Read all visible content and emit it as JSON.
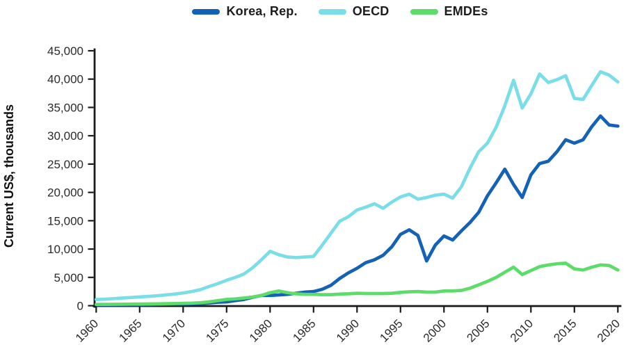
{
  "legend": {
    "items": [
      {
        "label": "Korea, Rep.",
        "color": "#1362b5"
      },
      {
        "label": "OECD",
        "color": "#7adee8"
      },
      {
        "label": "EMDEs",
        "color": "#5ddc69"
      }
    ]
  },
  "chart_data": {
    "type": "line",
    "title": "",
    "xlabel": "",
    "ylabel": "Current US$, thousands",
    "grid": false,
    "legend_position": "top",
    "xlim": [
      1960,
      2020
    ],
    "ylim": [
      0,
      45000
    ],
    "x_start": 1960,
    "x_tick_step": 5,
    "y_tick_step": 5000,
    "x_tick_labels": [
      "1960",
      "1965",
      "1970",
      "1975",
      "1980",
      "1985",
      "1990",
      "1995",
      "2000",
      "2005",
      "2010",
      "2015",
      "2020"
    ],
    "y_tick_labels": [
      "0",
      "5,000",
      "10,000",
      "15,000",
      "20,000",
      "25,000",
      "30,000",
      "35,000",
      "40,000",
      "45,000"
    ],
    "x": [
      1960,
      1961,
      1962,
      1963,
      1964,
      1965,
      1966,
      1967,
      1968,
      1969,
      1970,
      1971,
      1972,
      1973,
      1974,
      1975,
      1976,
      1977,
      1978,
      1979,
      1980,
      1981,
      1982,
      1983,
      1984,
      1985,
      1986,
      1987,
      1988,
      1989,
      1990,
      1991,
      1992,
      1993,
      1994,
      1995,
      1996,
      1997,
      1998,
      1999,
      2000,
      2001,
      2002,
      2003,
      2004,
      2005,
      2006,
      2007,
      2008,
      2009,
      2010,
      2011,
      2012,
      2013,
      2014,
      2015,
      2016,
      2017,
      2018,
      2019,
      2020
    ],
    "series": [
      {
        "name": "Korea, Rep.",
        "color": "#1362b5",
        "values": [
          160,
          150,
          150,
          160,
          160,
          160,
          180,
          210,
          240,
          280,
          320,
          350,
          380,
          480,
          620,
          680,
          900,
          1100,
          1500,
          1800,
          1800,
          1900,
          2000,
          2200,
          2400,
          2500,
          2900,
          3600,
          4800,
          5800,
          6600,
          7600,
          8100,
          8900,
          10400,
          12600,
          13400,
          12400,
          7900,
          10700,
          12300,
          11600,
          13200,
          14700,
          16500,
          19400,
          21700,
          24100,
          21400,
          19100,
          23100,
          25100,
          25500,
          27200,
          29300,
          28700,
          29300,
          31600,
          33500,
          31900,
          31700
        ]
      },
      {
        "name": "OECD",
        "color": "#7adee8",
        "values": [
          1100,
          1160,
          1250,
          1350,
          1450,
          1550,
          1650,
          1750,
          1900,
          2050,
          2250,
          2500,
          2850,
          3400,
          3900,
          4500,
          5000,
          5600,
          6700,
          8100,
          9600,
          9000,
          8600,
          8500,
          8600,
          8700,
          10700,
          12800,
          14900,
          15700,
          16900,
          17400,
          18000,
          17200,
          18300,
          19200,
          19700,
          18800,
          19100,
          19500,
          19700,
          19000,
          21000,
          24300,
          27200,
          28700,
          31500,
          35300,
          39800,
          34900,
          37400,
          40900,
          39400,
          39900,
          40600,
          36600,
          36400,
          38900,
          41300,
          40700,
          39500
        ]
      },
      {
        "name": "EMDEs",
        "color": "#5ddc69",
        "values": [
          230,
          230,
          240,
          260,
          280,
          300,
          310,
          330,
          350,
          380,
          420,
          460,
          530,
          680,
          900,
          1100,
          1200,
          1350,
          1550,
          1800,
          2300,
          2600,
          2300,
          2100,
          2000,
          2000,
          1950,
          1950,
          2050,
          2100,
          2200,
          2150,
          2150,
          2150,
          2200,
          2350,
          2450,
          2500,
          2400,
          2400,
          2600,
          2600,
          2700,
          3100,
          3700,
          4300,
          5000,
          5900,
          6800,
          5500,
          6200,
          6900,
          7200,
          7400,
          7500,
          6500,
          6300,
          6800,
          7200,
          7100,
          6300
        ]
      }
    ]
  }
}
